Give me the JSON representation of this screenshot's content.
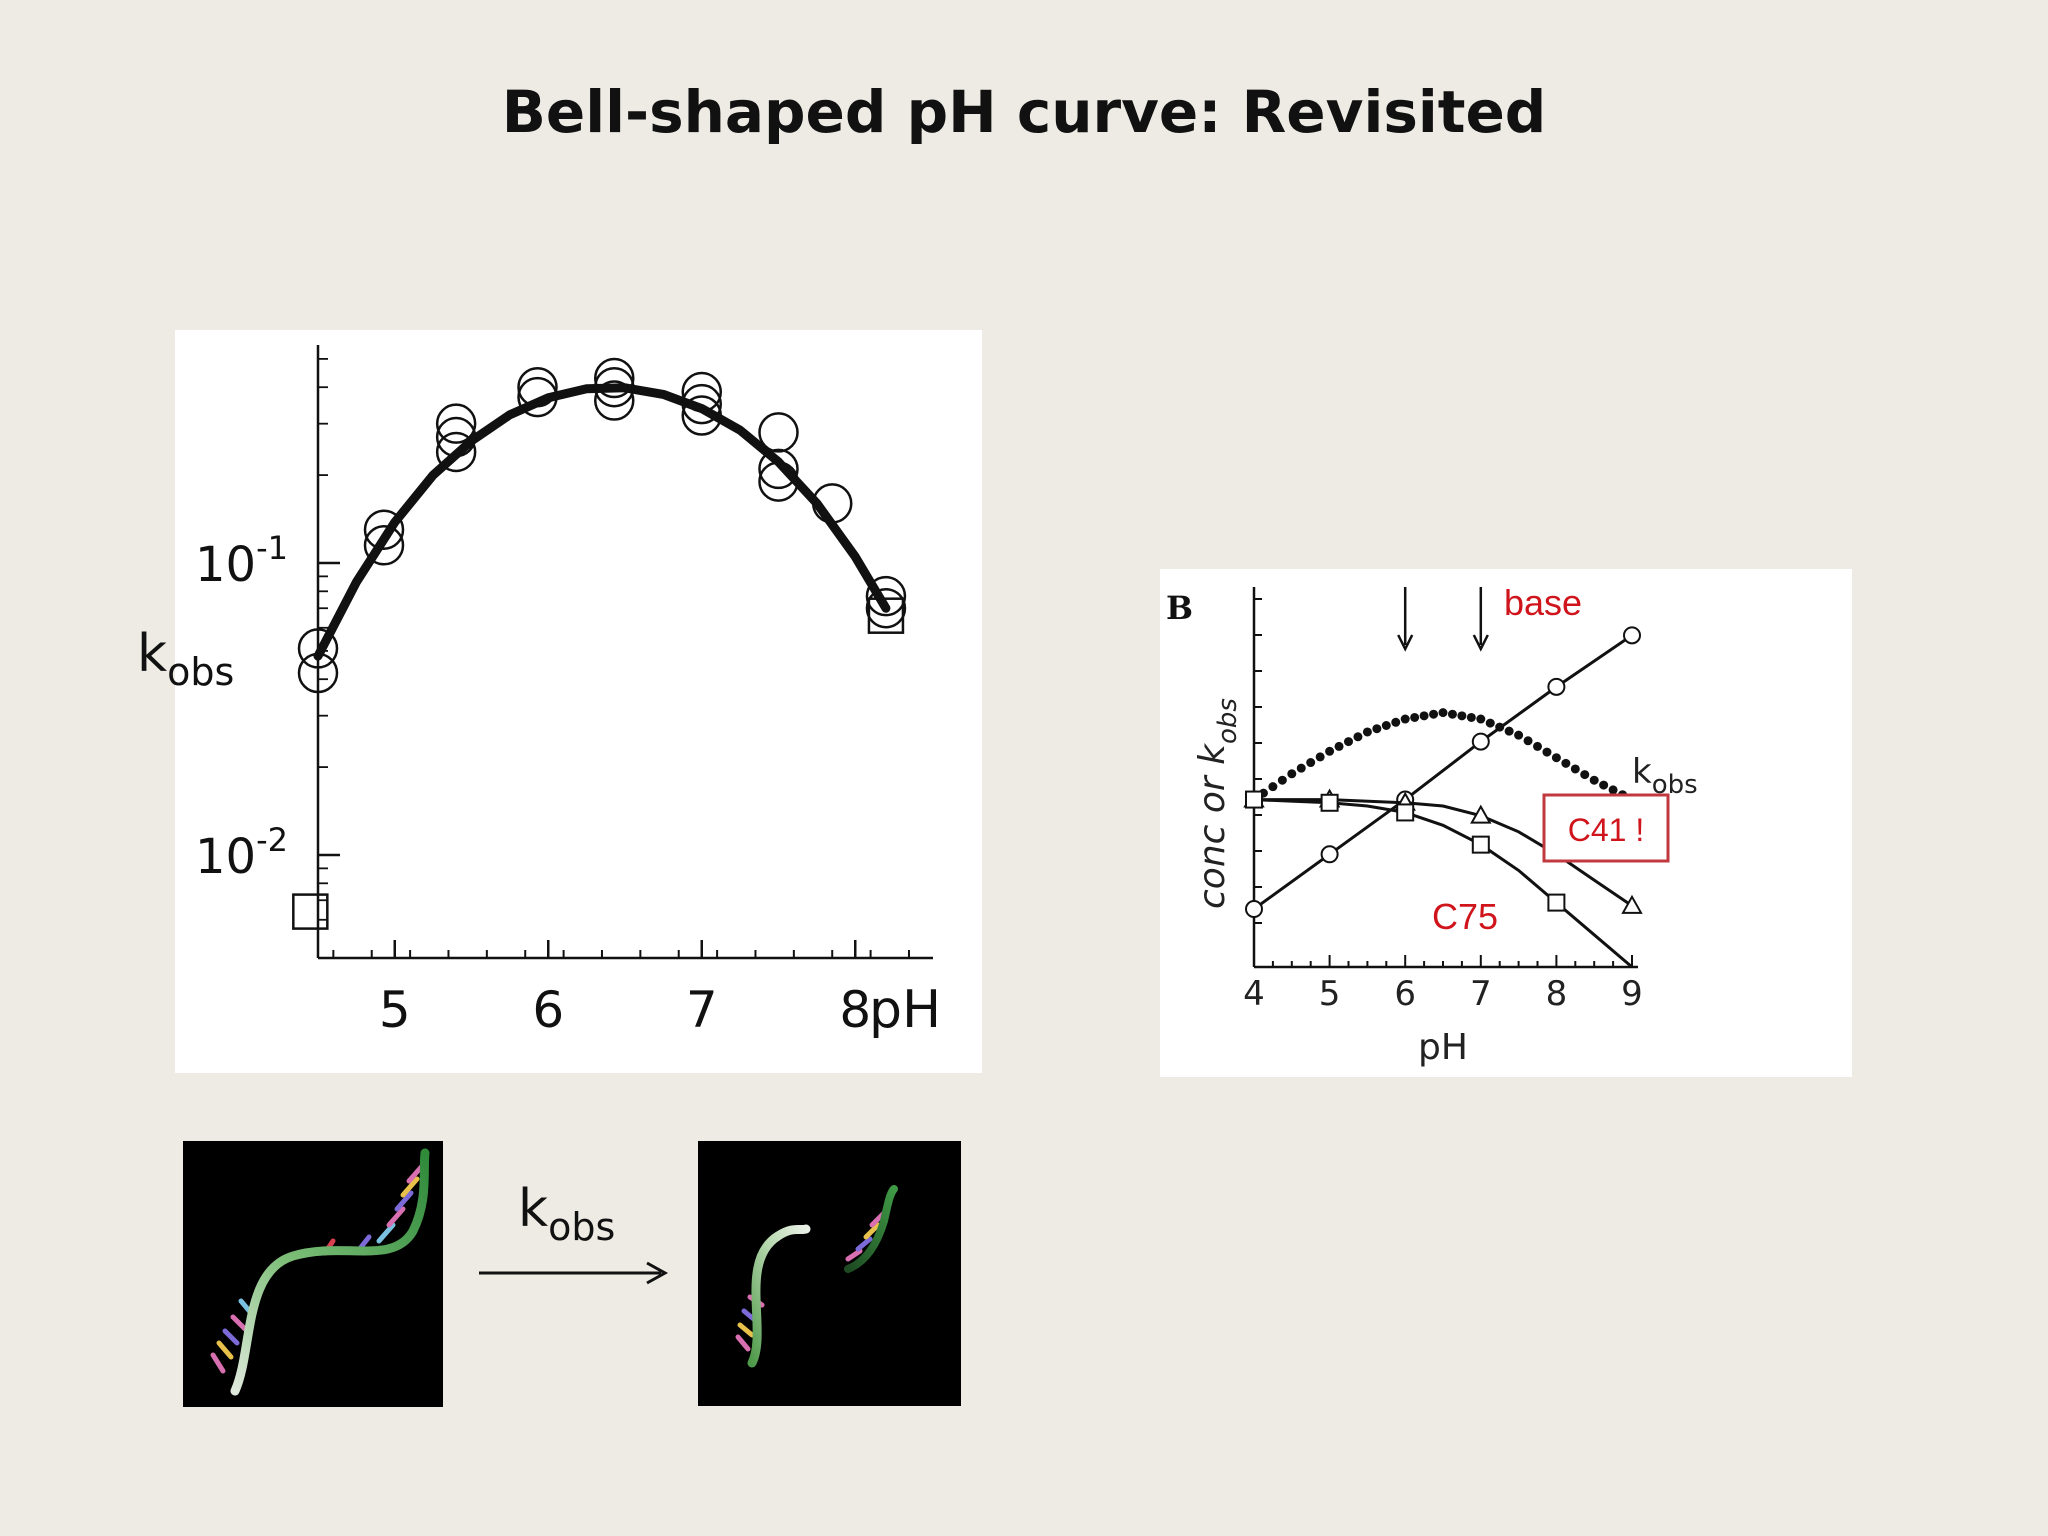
{
  "slide": {
    "title": "Bell-shaped pH curve: Revisited",
    "kobs_left": {
      "main": "k",
      "sub": "obs"
    },
    "kobs_arrow": {
      "main": "k",
      "sub": "obs"
    }
  },
  "chart_data": [
    {
      "type": "scatter",
      "scale": {
        "y": "log"
      },
      "xlabel": "pH",
      "ylabel": "",
      "xlim": [
        4.5,
        8.5
      ],
      "ylim": [
        0.005,
        0.6
      ],
      "x_tick_labels": [
        "5",
        "6",
        "7",
        "8"
      ],
      "x_tick_values": [
        5,
        6,
        7,
        8
      ],
      "y_tick_labels": [
        {
          "base": "10",
          "exp": "-1",
          "value": 0.1
        },
        {
          "base": "10",
          "exp": "-2",
          "value": 0.01
        }
      ],
      "series": [
        {
          "marker": "circle",
          "x": [
            4.5,
            4.5,
            4.93,
            4.93,
            5.4,
            5.4,
            5.4,
            5.93,
            5.93,
            6.43,
            6.43,
            6.43,
            7.0,
            7.0,
            7.0,
            7.5,
            7.5,
            7.5,
            7.85,
            8.2,
            8.2
          ],
          "y": [
            0.051,
            0.042,
            0.13,
            0.115,
            0.3,
            0.27,
            0.24,
            0.4,
            0.37,
            0.43,
            0.4,
            0.36,
            0.385,
            0.35,
            0.32,
            0.28,
            0.21,
            0.19,
            0.16,
            0.077,
            0.07
          ]
        },
        {
          "marker": "square",
          "x": [
            8.2,
            4.45
          ],
          "y": [
            0.066,
            0.0064
          ]
        }
      ],
      "fit_curve": {
        "x": [
          4.5,
          4.75,
          5.0,
          5.25,
          5.5,
          5.75,
          6.0,
          6.25,
          6.5,
          6.75,
          7.0,
          7.25,
          7.5,
          7.75,
          8.0,
          8.2
        ],
        "y": [
          0.048,
          0.086,
          0.138,
          0.2,
          0.262,
          0.322,
          0.368,
          0.395,
          0.398,
          0.378,
          0.338,
          0.285,
          0.222,
          0.16,
          0.105,
          0.07
        ]
      }
    },
    {
      "type": "line",
      "panel_label": "B",
      "xlabel": "pH",
      "ylabel": {
        "main": "conc or k",
        "sub": "obs"
      },
      "xlim": [
        4,
        9
      ],
      "x_tick_labels": [
        "4",
        "5",
        "6",
        "7",
        "8",
        "9"
      ],
      "x_tick_values": [
        4,
        5,
        6,
        7,
        8,
        9
      ],
      "arrows_at_x": [
        6,
        7
      ],
      "series": [
        {
          "name": "base",
          "marker": "circle",
          "x": [
            4,
            5,
            6,
            7,
            8,
            9
          ],
          "y": [
            0.18,
            0.35,
            0.52,
            0.7,
            0.87,
            1.03
          ]
        },
        {
          "name": "k",
          "name_sub": "obs",
          "style": "dotted",
          "x": [
            4.0,
            4.5,
            5.0,
            5.5,
            6.0,
            6.5,
            7.0,
            7.5,
            8.0,
            8.5,
            9.0
          ],
          "y": [
            0.52,
            0.6,
            0.67,
            0.73,
            0.77,
            0.79,
            0.77,
            0.72,
            0.65,
            0.58,
            0.52
          ]
        },
        {
          "name": "C41 !",
          "marker": "triangle",
          "x": [
            4.0,
            5.0,
            6.0,
            6.5,
            7.0,
            7.5,
            8.0,
            8.5,
            9.0
          ],
          "y": [
            0.52,
            0.52,
            0.51,
            0.5,
            0.47,
            0.42,
            0.35,
            0.27,
            0.19
          ],
          "marker_x": [
            4,
            5,
            6,
            7,
            9
          ]
        },
        {
          "name": "C75",
          "marker": "square",
          "x": [
            4.0,
            5.0,
            5.5,
            6.0,
            6.5,
            7.0,
            7.5,
            8.0,
            8.5,
            9.0
          ],
          "y": [
            0.52,
            0.51,
            0.5,
            0.48,
            0.44,
            0.38,
            0.3,
            0.2,
            0.1,
            0.0
          ],
          "marker_x": [
            4,
            5,
            6,
            7,
            8
          ]
        }
      ],
      "ylim": [
        0,
        1.1
      ]
    }
  ],
  "annotation_colors": {
    "label_red": "#d0141c"
  }
}
